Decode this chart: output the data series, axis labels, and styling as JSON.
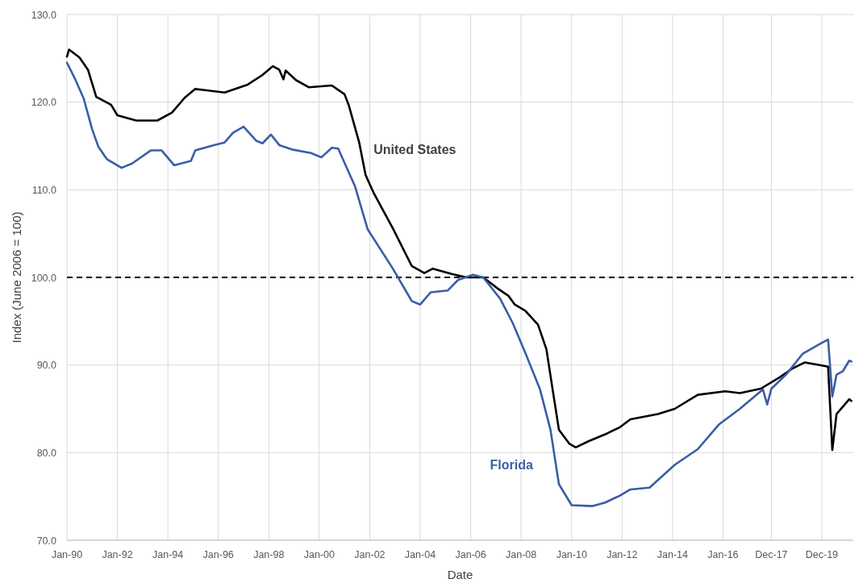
{
  "chart_data": {
    "type": "line",
    "xlabel": "Date",
    "ylabel": "Index (June 2006 = 100)",
    "xlim": [
      "1990-01",
      "2021-03"
    ],
    "xticks": [
      {
        "value": "1990-01",
        "label": "Jan-90"
      },
      {
        "value": "1992-01",
        "label": "Jan-92"
      },
      {
        "value": "1994-01",
        "label": "Jan-94"
      },
      {
        "value": "1996-01",
        "label": "Jan-96"
      },
      {
        "value": "1998-01",
        "label": "Jan-98"
      },
      {
        "value": "2000-01",
        "label": "Jan-00"
      },
      {
        "value": "2002-01",
        "label": "Jan-02"
      },
      {
        "value": "2004-01",
        "label": "Jan-04"
      },
      {
        "value": "2006-01",
        "label": "Jan-06"
      },
      {
        "value": "2008-01",
        "label": "Jan-08"
      },
      {
        "value": "2010-01",
        "label": "Jan-10"
      },
      {
        "value": "2012-01",
        "label": "Jan-12"
      },
      {
        "value": "2014-01",
        "label": "Jan-14"
      },
      {
        "value": "2016-01",
        "label": "Jan-16"
      },
      {
        "value": "2017-12",
        "label": "Dec-17"
      },
      {
        "value": "2019-12",
        "label": "Dec-19"
      }
    ],
    "ylim": [
      70,
      130
    ],
    "yticks": [
      {
        "value": 70,
        "label": "70.0"
      },
      {
        "value": 80,
        "label": "80.0"
      },
      {
        "value": 90,
        "label": "90.0"
      },
      {
        "value": 100,
        "label": "100.0"
      },
      {
        "value": 110,
        "label": "110.0"
      },
      {
        "value": 120,
        "label": "120.0"
      },
      {
        "value": 130,
        "label": "130.0"
      }
    ],
    "grid": true,
    "line_style": "solid",
    "ref_lines": [
      {
        "axis": "y",
        "value": 100,
        "color": "#000000",
        "line_style": "dashed"
      }
    ],
    "series": [
      {
        "name": "United States",
        "color": "#000000",
        "x": [
          "1990-01",
          "1990-02",
          "1990-07",
          "1990-11",
          "1991-03",
          "1991-10",
          "1992-01",
          "1992-10",
          "1993-08",
          "1994-03",
          "1994-09",
          "1995-02",
          "1996-04",
          "1997-03",
          "1997-10",
          "1998-03",
          "1998-06",
          "1998-08",
          "1998-09",
          "1999-02",
          "1999-08",
          "2000-07",
          "2001-01",
          "2001-03",
          "2001-08",
          "2001-11",
          "2002-03",
          "2002-12",
          "2003-09",
          "2004-03",
          "2004-07",
          "2005-04",
          "2005-11",
          "2006-07",
          "2007-02",
          "2007-07",
          "2007-10",
          "2008-03",
          "2008-09",
          "2009-01",
          "2009-04",
          "2009-07",
          "2009-12",
          "2010-03",
          "2010-09",
          "2011-06",
          "2011-12",
          "2012-05",
          "2013-06",
          "2014-02",
          "2015-01",
          "2016-02",
          "2016-09",
          "2017-07",
          "2018-04",
          "2018-10",
          "2019-04",
          "2019-11",
          "2020-03",
          "2020-05",
          "2020-07",
          "2021-01",
          "2021-02"
        ],
        "values": [
          125.2,
          126.0,
          125.1,
          123.7,
          120.6,
          119.7,
          118.5,
          117.9,
          117.9,
          118.8,
          120.5,
          121.5,
          121.1,
          122.0,
          123.1,
          124.1,
          123.7,
          122.6,
          123.6,
          122.5,
          121.7,
          121.9,
          120.9,
          119.7,
          115.4,
          111.7,
          109.6,
          105.6,
          101.3,
          100.5,
          101.0,
          100.4,
          100.0,
          100.0,
          98.7,
          97.9,
          96.9,
          96.2,
          94.6,
          91.8,
          87.2,
          82.6,
          81.0,
          80.6,
          81.3,
          82.2,
          82.9,
          83.8,
          84.4,
          85.0,
          86.6,
          87.0,
          86.8,
          87.3,
          88.6,
          89.6,
          90.3,
          90.0,
          89.8,
          80.3,
          84.4,
          86.1,
          85.9
        ]
      },
      {
        "name": "Florida",
        "color": "#3a5da6",
        "x": [
          "1990-01",
          "1990-05",
          "1990-09",
          "1991-01",
          "1991-04",
          "1991-08",
          "1992-03",
          "1992-08",
          "1993-05",
          "1993-10",
          "1994-04",
          "1994-12",
          "1995-02",
          "1995-11",
          "1996-04",
          "1996-08",
          "1997-01",
          "1997-07",
          "1997-10",
          "1998-02",
          "1998-06",
          "1998-12",
          "1999-09",
          "2000-02",
          "2000-07",
          "2000-10",
          "2001-06",
          "2001-12",
          "2002-12",
          "2003-09",
          "2004-01",
          "2004-06",
          "2005-02",
          "2005-07",
          "2006-02",
          "2006-07",
          "2007-03",
          "2007-09",
          "2008-03",
          "2008-10",
          "2009-03",
          "2009-07",
          "2010-01",
          "2010-11",
          "2011-05",
          "2011-12",
          "2012-05",
          "2013-02",
          "2014-02",
          "2015-01",
          "2015-11",
          "2016-09",
          "2017-05",
          "2017-08",
          "2017-10",
          "2017-12",
          "2018-07",
          "2019-03",
          "2019-11",
          "2020-03",
          "2020-05",
          "2020-07",
          "2020-10",
          "2021-01",
          "2021-02"
        ],
        "values": [
          124.5,
          122.6,
          120.4,
          116.9,
          114.9,
          113.5,
          112.5,
          113.0,
          114.5,
          114.5,
          112.8,
          113.3,
          114.5,
          115.1,
          115.4,
          116.5,
          117.2,
          115.6,
          115.3,
          116.3,
          115.1,
          114.6,
          114.2,
          113.7,
          114.8,
          114.7,
          110.4,
          105.5,
          101.0,
          97.3,
          96.9,
          98.3,
          98.5,
          99.7,
          100.3,
          100.0,
          97.6,
          94.8,
          91.4,
          87.2,
          82.6,
          76.4,
          74.0,
          73.9,
          74.3,
          75.1,
          75.8,
          76.0,
          78.6,
          80.4,
          83.2,
          85.0,
          86.6,
          87.2,
          85.5,
          87.3,
          88.9,
          91.3,
          92.4,
          92.9,
          86.4,
          88.9,
          89.3,
          90.5,
          90.4
        ]
      }
    ]
  }
}
